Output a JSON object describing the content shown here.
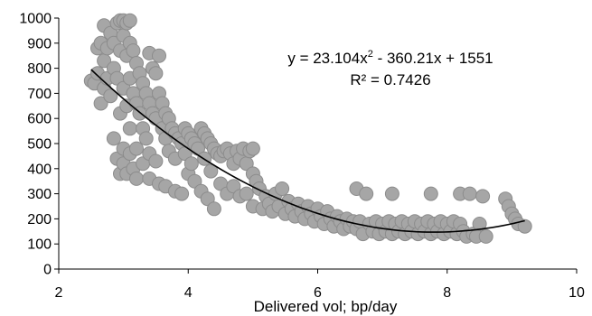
{
  "chart_data": {
    "type": "scatter",
    "xlabel": "Delivered vol; bp/day",
    "ylabel": "",
    "xlim": [
      2,
      10
    ],
    "ylim": [
      0,
      1000
    ],
    "xticks": [
      2,
      4,
      6,
      8,
      10
    ],
    "yticks": [
      0,
      100,
      200,
      300,
      400,
      500,
      600,
      700,
      800,
      900,
      1000
    ],
    "grid": false,
    "legend": "none",
    "marker_fill": "#a6a6a6",
    "marker_edge": "#8c8c8c",
    "trend_color": "#000000",
    "trendline": {
      "type": "polynomial",
      "coefficients": [
        23.104,
        -360.21,
        1551
      ],
      "x_range": [
        2.5,
        9.2
      ]
    },
    "annotations": {
      "equation_prefix": "y = 23.104x",
      "equation_exp": "2",
      "equation_suffix": " - 360.21x + 1551",
      "r2": "R² = 0.7426"
    },
    "series": [
      {
        "points": [
          [
            2.5,
            750
          ],
          [
            2.55,
            740
          ],
          [
            2.6,
            880
          ],
          [
            2.6,
            780
          ],
          [
            2.65,
            900
          ],
          [
            2.65,
            660
          ],
          [
            2.7,
            970
          ],
          [
            2.7,
            830
          ],
          [
            2.7,
            720
          ],
          [
            2.75,
            880
          ],
          [
            2.75,
            760
          ],
          [
            2.8,
            940
          ],
          [
            2.8,
            690
          ],
          [
            2.85,
            900
          ],
          [
            2.85,
            800
          ],
          [
            2.85,
            520
          ],
          [
            2.9,
            980
          ],
          [
            2.9,
            760
          ],
          [
            2.9,
            440
          ],
          [
            2.95,
            990
          ],
          [
            2.95,
            870
          ],
          [
            2.95,
            620
          ],
          [
            2.95,
            380
          ],
          [
            3.0,
            990
          ],
          [
            3.0,
            930
          ],
          [
            3.0,
            720
          ],
          [
            3.0,
            480
          ],
          [
            3.0,
            420
          ],
          [
            3.05,
            980
          ],
          [
            3.05,
            850
          ],
          [
            3.05,
            650
          ],
          [
            3.05,
            380
          ],
          [
            3.1,
            990
          ],
          [
            3.1,
            900
          ],
          [
            3.1,
            760
          ],
          [
            3.1,
            560
          ],
          [
            3.1,
            460
          ],
          [
            3.15,
            870
          ],
          [
            3.15,
            700
          ],
          [
            3.15,
            400
          ],
          [
            3.2,
            820
          ],
          [
            3.2,
            660
          ],
          [
            3.2,
            480
          ],
          [
            3.2,
            360
          ],
          [
            3.25,
            780
          ],
          [
            3.25,
            620
          ],
          [
            3.3,
            740
          ],
          [
            3.3,
            560
          ],
          [
            3.3,
            420
          ],
          [
            3.35,
            700
          ],
          [
            3.35,
            520
          ],
          [
            3.4,
            860
          ],
          [
            3.4,
            660
          ],
          [
            3.4,
            460
          ],
          [
            3.4,
            360
          ],
          [
            3.45,
            800
          ],
          [
            3.45,
            620
          ],
          [
            3.5,
            780
          ],
          [
            3.5,
            600
          ],
          [
            3.5,
            430
          ],
          [
            3.55,
            850
          ],
          [
            3.55,
            700
          ],
          [
            3.55,
            340
          ],
          [
            3.6,
            660
          ],
          [
            3.6,
            560
          ],
          [
            3.65,
            620
          ],
          [
            3.65,
            520
          ],
          [
            3.65,
            330
          ],
          [
            3.7,
            600
          ],
          [
            3.7,
            470
          ],
          [
            3.75,
            560
          ],
          [
            3.8,
            540
          ],
          [
            3.8,
            440
          ],
          [
            3.8,
            310
          ],
          [
            3.85,
            520
          ],
          [
            3.9,
            500
          ],
          [
            3.9,
            300
          ],
          [
            3.95,
            560
          ],
          [
            3.95,
            460
          ],
          [
            4.0,
            540
          ],
          [
            4.0,
            380
          ],
          [
            4.05,
            520
          ],
          [
            4.05,
            420
          ],
          [
            4.1,
            500
          ],
          [
            4.1,
            350
          ],
          [
            4.15,
            480
          ],
          [
            4.2,
            560
          ],
          [
            4.2,
            310
          ],
          [
            4.25,
            540
          ],
          [
            4.25,
            440
          ],
          [
            4.3,
            520
          ],
          [
            4.3,
            280
          ],
          [
            4.35,
            500
          ],
          [
            4.35,
            390
          ],
          [
            4.4,
            480
          ],
          [
            4.4,
            240
          ],
          [
            4.45,
            460
          ],
          [
            4.5,
            450
          ],
          [
            4.5,
            340
          ],
          [
            4.55,
            470
          ],
          [
            4.6,
            480
          ],
          [
            4.6,
            300
          ],
          [
            4.65,
            460
          ],
          [
            4.7,
            420
          ],
          [
            4.7,
            330
          ],
          [
            4.75,
            470
          ],
          [
            4.8,
            440
          ],
          [
            4.8,
            290
          ],
          [
            4.85,
            480
          ],
          [
            4.9,
            420
          ],
          [
            4.9,
            300
          ],
          [
            4.95,
            470
          ],
          [
            5.0,
            480
          ],
          [
            5.0,
            380
          ],
          [
            5.0,
            250
          ],
          [
            5.05,
            350
          ],
          [
            5.1,
            320
          ],
          [
            5.15,
            240
          ],
          [
            5.2,
            290
          ],
          [
            5.25,
            260
          ],
          [
            5.3,
            230
          ],
          [
            5.35,
            300
          ],
          [
            5.4,
            250
          ],
          [
            5.45,
            320
          ],
          [
            5.5,
            220
          ],
          [
            5.55,
            270
          ],
          [
            5.6,
            240
          ],
          [
            5.65,
            210
          ],
          [
            5.7,
            260
          ],
          [
            5.75,
            230
          ],
          [
            5.8,
            200
          ],
          [
            5.85,
            250
          ],
          [
            5.9,
            220
          ],
          [
            5.95,
            190
          ],
          [
            6.0,
            240
          ],
          [
            6.05,
            210
          ],
          [
            6.1,
            180
          ],
          [
            6.15,
            230
          ],
          [
            6.2,
            200
          ],
          [
            6.25,
            170
          ],
          [
            6.3,
            210
          ],
          [
            6.35,
            190
          ],
          [
            6.4,
            160
          ],
          [
            6.45,
            200
          ],
          [
            6.5,
            170
          ],
          [
            6.55,
            190
          ],
          [
            6.6,
            160
          ],
          [
            6.6,
            320
          ],
          [
            6.65,
            190
          ],
          [
            6.7,
            140
          ],
          [
            6.75,
            300
          ],
          [
            6.8,
            180
          ],
          [
            6.85,
            150
          ],
          [
            6.9,
            190
          ],
          [
            6.95,
            140
          ],
          [
            7.0,
            180
          ],
          [
            7.05,
            150
          ],
          [
            7.1,
            190
          ],
          [
            7.15,
            140
          ],
          [
            7.15,
            300
          ],
          [
            7.2,
            180
          ],
          [
            7.25,
            150
          ],
          [
            7.3,
            190
          ],
          [
            7.35,
            140
          ],
          [
            7.4,
            180
          ],
          [
            7.45,
            150
          ],
          [
            7.5,
            190
          ],
          [
            7.55,
            140
          ],
          [
            7.6,
            180
          ],
          [
            7.65,
            150
          ],
          [
            7.7,
            190
          ],
          [
            7.75,
            140
          ],
          [
            7.75,
            300
          ],
          [
            7.8,
            180
          ],
          [
            7.85,
            150
          ],
          [
            7.9,
            190
          ],
          [
            7.95,
            140
          ],
          [
            8.0,
            180
          ],
          [
            8.05,
            150
          ],
          [
            8.1,
            190
          ],
          [
            8.15,
            140
          ],
          [
            8.2,
            180
          ],
          [
            8.2,
            300
          ],
          [
            8.25,
            150
          ],
          [
            8.3,
            130
          ],
          [
            8.35,
            300
          ],
          [
            8.4,
            140
          ],
          [
            8.45,
            130
          ],
          [
            8.5,
            180
          ],
          [
            8.55,
            290
          ],
          [
            8.6,
            130
          ],
          [
            8.9,
            280
          ],
          [
            8.95,
            250
          ],
          [
            9.0,
            220
          ],
          [
            9.05,
            200
          ],
          [
            9.1,
            180
          ],
          [
            9.2,
            170
          ]
        ]
      }
    ]
  }
}
